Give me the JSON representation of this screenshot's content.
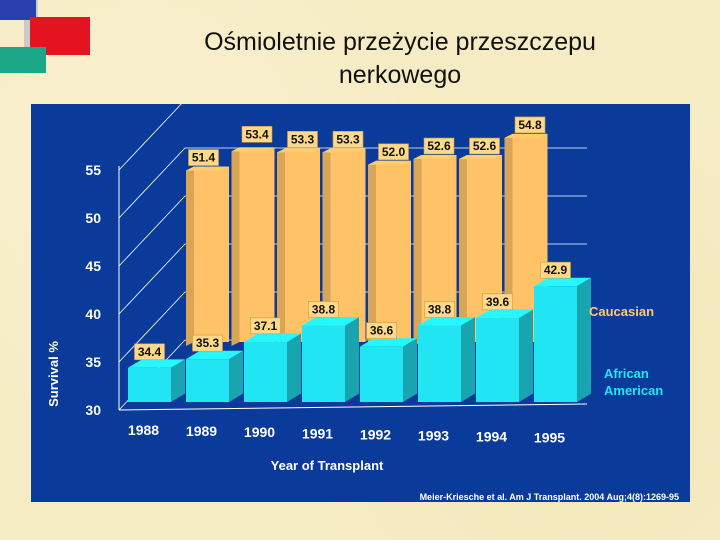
{
  "slide": {
    "title": "Ośmioletnie przeżycie przeszczepu\nnerkowego",
    "citation": "Meier-Kriesche et al. Am J Transplant. 2004 Aug;4(8):1269-95"
  },
  "colors": {
    "panel": "#0b3b9a",
    "caucasian": "#ffc266",
    "african_american": "#22e5f4",
    "label_box": "#ffd98a",
    "series_label": "#ffcc66",
    "axis_text": "#ffffff"
  },
  "chart_data": {
    "type": "bar",
    "title": "",
    "xlabel": "Year of Transplant",
    "ylabel": "Survival %",
    "ylim": [
      30,
      57
    ],
    "yticks": [
      30,
      35,
      40,
      45,
      50,
      55
    ],
    "grid": true,
    "legend": "right",
    "categories": [
      "1988",
      "1989",
      "1990",
      "1991",
      "1992",
      "1993",
      "1994",
      "1995"
    ],
    "series": [
      {
        "name": "Caucasian",
        "values": [
          51.4,
          53.4,
          53.3,
          53.3,
          52.0,
          52.6,
          52.6,
          54.8
        ]
      },
      {
        "name": "African American",
        "values": [
          34.4,
          35.3,
          37.1,
          38.8,
          36.6,
          38.8,
          39.6,
          42.9
        ]
      }
    ]
  }
}
